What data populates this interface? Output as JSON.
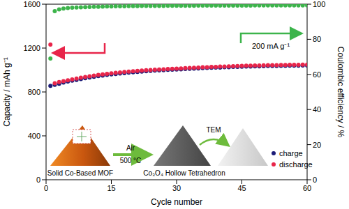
{
  "chart_data": {
    "type": "scatter",
    "xlabel": "Cycle number",
    "ylabel": "Capacity / mAh g⁻¹",
    "y2label": "Coulombic efficiency / %",
    "x": [
      1,
      2,
      3,
      4,
      5,
      6,
      7,
      8,
      9,
      10,
      11,
      12,
      13,
      14,
      15,
      16,
      17,
      18,
      19,
      20,
      21,
      22,
      23,
      24,
      25,
      26,
      27,
      28,
      29,
      30,
      31,
      32,
      33,
      34,
      35,
      36,
      37,
      38,
      39,
      40,
      41,
      42,
      43,
      44,
      45,
      46,
      47,
      48,
      49,
      50,
      51,
      52,
      53,
      54,
      55,
      56,
      57,
      58,
      59,
      60
    ],
    "xlim": [
      0,
      60
    ],
    "xticks": [
      0,
      15,
      30,
      45,
      60
    ],
    "ylim": [
      0,
      1600
    ],
    "yticks": [
      0,
      400,
      800,
      1200,
      1600
    ],
    "y2lim": [
      0,
      100
    ],
    "y2ticks": [
      0,
      20,
      40,
      60,
      80,
      100
    ],
    "grid": false,
    "legend": "lower right",
    "series": [
      {
        "name": "charge",
        "color": "#1c1c78",
        "marker": "circle",
        "values": [
          855,
          865,
          875,
          885,
          895,
          903,
          910,
          918,
          925,
          932,
          938,
          944,
          950,
          955,
          960,
          964,
          968,
          972,
          976,
          980,
          983,
          986,
          989,
          992,
          995,
          997,
          999,
          1001,
          1003,
          1005,
          1007,
          1009,
          1011,
          1013,
          1015,
          1017,
          1019,
          1020,
          1022,
          1023,
          1025,
          1026,
          1028,
          1029,
          1030,
          1031,
          1032,
          1033,
          1034,
          1035,
          1036,
          1036,
          1037,
          1038,
          1038,
          1039,
          1040,
          1040,
          1041,
          1041
        ]
      },
      {
        "name": "discharge",
        "color": "#e8254a",
        "marker": "circle",
        "values": [
          1232,
          880,
          890,
          898,
          907,
          915,
          922,
          930,
          936,
          943,
          949,
          955,
          960,
          965,
          970,
          974,
          978,
          982,
          985,
          989,
          992,
          995,
          998,
          1000,
          1003,
          1005,
          1007,
          1009,
          1011,
          1013,
          1015,
          1017,
          1019,
          1021,
          1023,
          1025,
          1026,
          1028,
          1029,
          1031,
          1032,
          1034,
          1035,
          1036,
          1038,
          1039,
          1040,
          1041,
          1042,
          1043,
          1044,
          1044,
          1045,
          1046,
          1046,
          1047,
          1048,
          1048,
          1049,
          1049
        ]
      },
      {
        "color": "#3cb44b",
        "marker": "circle",
        "axis": "y2",
        "values": [
          69,
          96,
          97,
          97.5,
          97.8,
          98,
          98.1,
          98.2,
          98.3,
          98.4,
          98.5,
          98.5,
          98.6,
          98.7,
          98.7,
          98.8,
          98.8,
          98.8,
          98.9,
          98.9,
          98.9,
          99,
          99,
          99,
          99,
          99,
          99,
          99.1,
          99.1,
          99.1,
          99.1,
          99.1,
          99.1,
          99.1,
          99.2,
          99.2,
          99.2,
          99.2,
          99.2,
          99.2,
          99.2,
          99.2,
          99.2,
          99.2,
          99.2,
          99.2,
          99.2,
          99.3,
          99.3,
          99.3,
          99.3,
          99.3,
          99.3,
          99.3,
          99.3,
          99.3,
          99.3,
          99.3,
          99.3,
          99.3
        ]
      }
    ],
    "annotations": [
      "200  mA g⁻¹",
      "Solid Co-Based MOF",
      "Air",
      "500 °C",
      "Co₃O₄ Hollow Tetrahedron",
      "TEM"
    ]
  }
}
